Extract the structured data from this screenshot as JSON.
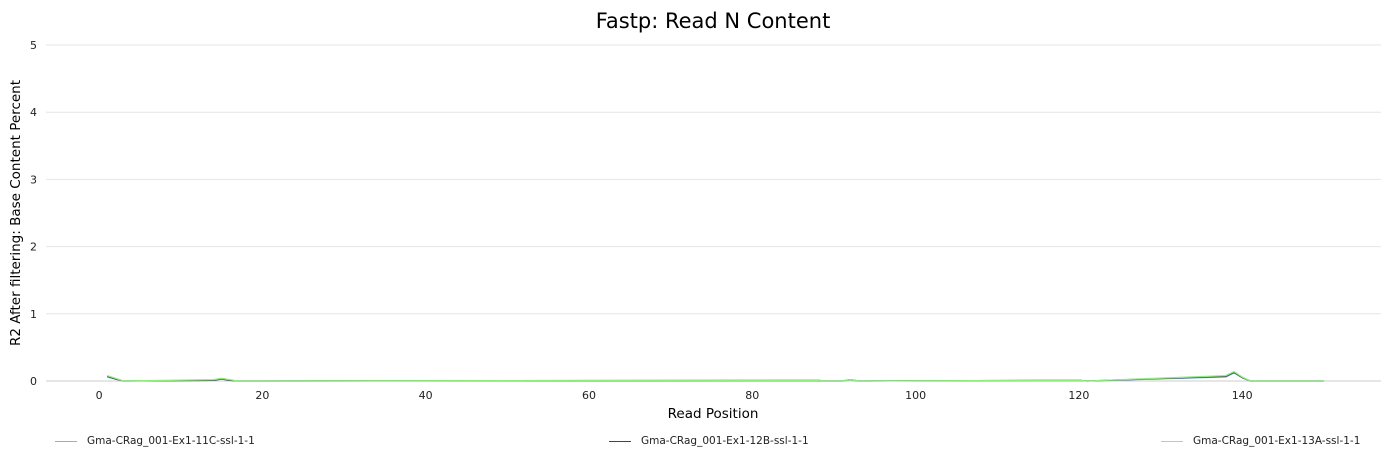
{
  "chart_data": {
    "type": "line",
    "title": "Fastp: Read N Content",
    "xlabel": "Read Position",
    "ylabel": "R2 After filtering: Base Content Percent",
    "xlim": [
      -6.5,
      157
    ],
    "ylim": [
      0,
      5
    ],
    "xticks": [
      0,
      20,
      40,
      60,
      80,
      100,
      120,
      140
    ],
    "yticks": [
      0,
      1,
      2,
      3,
      4,
      5
    ],
    "grid": true,
    "legend_position": "bottom",
    "series": [
      {
        "name": "Gma-CRag_001-Ex1-11C-ssl-1-1",
        "color": "#7cb5ec",
        "x": [
          1,
          2,
          3,
          14,
          15,
          16,
          17,
          88,
          89,
          91,
          92,
          93,
          120,
          121,
          138,
          139,
          140,
          141,
          150
        ],
        "y": [
          0.06,
          0.03,
          0.0,
          0.01,
          0.03,
          0.01,
          0.0,
          0.0,
          0.0,
          0.0,
          0.02,
          0.0,
          0.01,
          0.0,
          0.06,
          0.12,
          0.05,
          0.0,
          0.0
        ]
      },
      {
        "name": "Gma-CRag_001-Ex1-12B-ssl-1-1",
        "color": "#434348",
        "x": [
          1,
          2,
          3,
          14,
          15,
          16,
          17,
          88,
          89,
          91,
          92,
          93,
          120,
          121,
          138,
          139,
          140,
          141,
          150
        ],
        "y": [
          0.07,
          0.03,
          0.0,
          0.01,
          0.03,
          0.01,
          0.0,
          0.01,
          0.0,
          0.0,
          0.02,
          0.0,
          0.01,
          0.0,
          0.07,
          0.13,
          0.05,
          0.0,
          0.0
        ]
      },
      {
        "name": "Gma-CRag_001-Ex1-13A-ssl-1-1",
        "color": "#90ed7d",
        "x": [
          1,
          2,
          3,
          14,
          15,
          16,
          17,
          88,
          89,
          91,
          92,
          93,
          120,
          121,
          138,
          139,
          140,
          141,
          150
        ],
        "y": [
          0.08,
          0.04,
          0.0,
          0.02,
          0.04,
          0.02,
          0.0,
          0.01,
          0.0,
          0.0,
          0.02,
          0.0,
          0.01,
          0.0,
          0.08,
          0.14,
          0.06,
          0.0,
          0.0
        ]
      }
    ]
  }
}
